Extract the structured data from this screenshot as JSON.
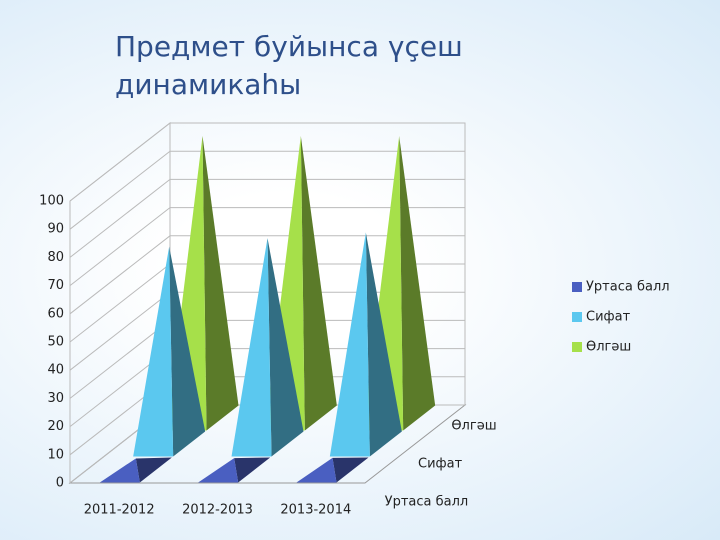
{
  "chart_data": {
    "type": "pyramid3d",
    "title": "Предмет буйынса үҫеш динамикаһы",
    "categories": [
      "2011-2012",
      "2012-2013",
      "2013-2014"
    ],
    "series": [
      {
        "name": "Уртаса балл",
        "color": "#4a5fc1",
        "values": [
          4.1,
          4.2,
          4.3
        ]
      },
      {
        "name": "Сифат",
        "color": "#5bc8ef",
        "values": [
          70,
          73,
          75
        ]
      },
      {
        "name": "Өлгәш",
        "color": "#a6e04a",
        "values": [
          100,
          100,
          100
        ]
      }
    ],
    "ylim": [
      0,
      100
    ],
    "yticks": [
      0,
      10,
      20,
      30,
      40,
      50,
      60,
      70,
      80,
      90,
      100
    ],
    "grid": true,
    "legend": "right"
  }
}
